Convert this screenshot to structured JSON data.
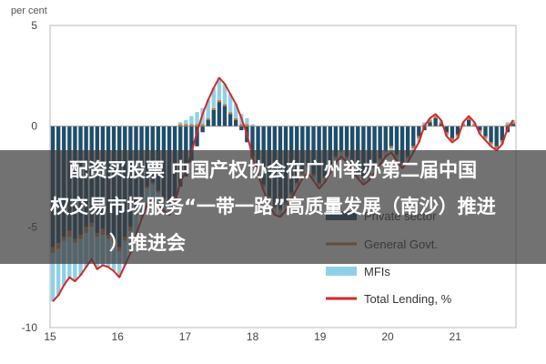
{
  "chart_data": {
    "type": "bar",
    "stacked": true,
    "unit_label": "per cent",
    "ylim": [
      -10,
      5
    ],
    "y_ticks": [
      "5",
      "0",
      "-5",
      "-10"
    ],
    "x_ticks": [
      "15",
      "16",
      "17",
      "18",
      "19",
      "20",
      "21"
    ],
    "x_start_year": 2015,
    "x_end_year": 2021.9,
    "grid": false,
    "legend_position": "bottom-right",
    "colors": {
      "private": "#1f4e6b",
      "government": "#c8763a",
      "mfi": "#8fd0e8",
      "total": "#d62728"
    },
    "series": [
      {
        "name": "Private sector",
        "values": [
          -6.0,
          -5.8,
          -5.5,
          -5.2,
          -5.6,
          -5.4,
          -5.0,
          -4.8,
          -5.3,
          -5.1,
          -5.4,
          -5.6,
          -6.0,
          -5.5,
          -5.0,
          -4.2,
          -3.6,
          -3.0,
          -2.8,
          -3.2,
          -3.6,
          -3.9,
          -3.5,
          -3.0,
          -2.5,
          -1.8,
          -1.0,
          -0.3,
          0.3,
          0.8,
          1.2,
          1.0,
          0.6,
          0.3,
          -0.2,
          -0.8,
          -1.5,
          -2.2,
          -2.9,
          -3.5,
          -4.0,
          -4.1,
          -3.8,
          -3.3,
          -2.8,
          -2.3,
          -2.0,
          -2.4,
          -2.8,
          -2.5,
          -2.0,
          -1.5,
          -1.2,
          -1.5,
          -1.9,
          -2.3,
          -2.6,
          -2.4,
          -2.0,
          -1.6,
          -1.2,
          -1.0,
          -1.4,
          -1.8,
          -1.5,
          -1.0,
          -0.5,
          -0.2,
          0.2,
          0.4,
          0.1,
          -0.3,
          -0.6,
          -0.4,
          0.0,
          0.3,
          0.0,
          -0.2,
          -0.5,
          -0.8,
          -1.0,
          -0.7,
          -0.3,
          0.1
        ]
      },
      {
        "name": "General Govt.",
        "values": [
          -0.3,
          -0.3,
          -0.2,
          -0.3,
          -0.2,
          -0.2,
          -0.3,
          -0.2,
          -0.2,
          -0.3,
          -0.2,
          -0.2,
          -0.2,
          -0.2,
          -0.2,
          -0.2,
          -0.1,
          -0.1,
          -0.1,
          -0.1,
          -0.1,
          -0.1,
          -0.1,
          0.1,
          0.1,
          0.1,
          0.1,
          0.1,
          0.1,
          0.1,
          0.1,
          0.1,
          0.1,
          0.1,
          0.1,
          0.1,
          -0.1,
          -0.1,
          -0.1,
          -0.1,
          -0.1,
          -0.1,
          -0.1,
          -0.1,
          -0.1,
          -0.1,
          -0.1,
          -0.1,
          -0.1,
          -0.1,
          -0.1,
          -0.1,
          -0.1,
          -0.1,
          -0.1,
          -0.1,
          -0.1,
          -0.1,
          -0.1,
          -0.1,
          -0.1,
          -0.1,
          -0.1,
          -0.1,
          -0.1,
          -0.1,
          -0.1,
          0.1,
          0.1,
          0.1,
          0.1,
          -0.1,
          -0.1,
          -0.1,
          0.1,
          0.1,
          0.1,
          -0.1,
          -0.1,
          -0.1,
          -0.1,
          -0.1,
          0.1,
          0.1
        ]
      },
      {
        "name": "MFIs",
        "values": [
          -2.4,
          -2.3,
          -2.2,
          -2.0,
          -1.9,
          -1.8,
          -1.7,
          -1.6,
          -1.6,
          -1.5,
          -1.4,
          -1.4,
          -1.3,
          -1.2,
          -1.1,
          -1.0,
          -0.9,
          -0.8,
          -0.7,
          -0.6,
          -0.5,
          -0.4,
          -0.2,
          0.1,
          0.2,
          0.4,
          0.6,
          0.8,
          0.9,
          1.0,
          1.1,
          1.0,
          0.9,
          0.7,
          0.5,
          0.3,
          0.1,
          -0.1,
          -0.2,
          -0.3,
          -0.3,
          -0.3,
          -0.3,
          -0.2,
          -0.2,
          -0.2,
          -0.2,
          -0.2,
          -0.2,
          -0.2,
          -0.2,
          -0.2,
          -0.2,
          -0.2,
          -0.2,
          -0.2,
          -0.2,
          -0.2,
          -0.2,
          -0.2,
          -0.2,
          -0.2,
          -0.2,
          -0.2,
          -0.2,
          -0.2,
          -0.2,
          0.1,
          0.1,
          0.1,
          0.1,
          -0.1,
          -0.1,
          -0.1,
          0.1,
          0.1,
          0.1,
          -0.1,
          -0.1,
          -0.1,
          -0.1,
          -0.1,
          0.1,
          0.1
        ]
      },
      {
        "name": "Total Lending, %",
        "type": "line",
        "values": [
          -8.7,
          -8.4,
          -7.9,
          -7.5,
          -7.7,
          -7.4,
          -7.0,
          -6.6,
          -7.1,
          -6.9,
          -7.0,
          -7.2,
          -7.5,
          -6.9,
          -6.3,
          -5.4,
          -4.6,
          -3.9,
          -3.6,
          -3.9,
          -4.2,
          -4.4,
          -3.8,
          -2.8,
          -2.2,
          -1.3,
          -0.3,
          0.6,
          1.3,
          1.9,
          2.4,
          2.1,
          1.6,
          1.1,
          0.4,
          -0.4,
          -1.5,
          -2.4,
          -3.2,
          -3.9,
          -4.4,
          -4.5,
          -4.2,
          -3.6,
          -3.1,
          -2.6,
          -2.3,
          -2.7,
          -3.1,
          -2.8,
          -2.3,
          -1.8,
          -1.5,
          -1.8,
          -2.2,
          -2.6,
          -2.9,
          -2.7,
          -2.3,
          -1.9,
          -1.5,
          -1.3,
          -1.7,
          -2.1,
          -1.8,
          -1.3,
          -0.8,
          0.0,
          0.4,
          0.6,
          0.3,
          -0.5,
          -0.8,
          -0.6,
          0.2,
          0.5,
          0.2,
          -0.4,
          -0.7,
          -1.0,
          -1.2,
          -0.9,
          -0.1,
          0.3
        ]
      }
    ]
  },
  "overlay": {
    "line1": "配资买股票 中国产权协会在广州举办第二届中国",
    "line2": "权交易市场服务“一带一路”高质量发展（南沙）推进",
    "line3": "）推进会"
  }
}
